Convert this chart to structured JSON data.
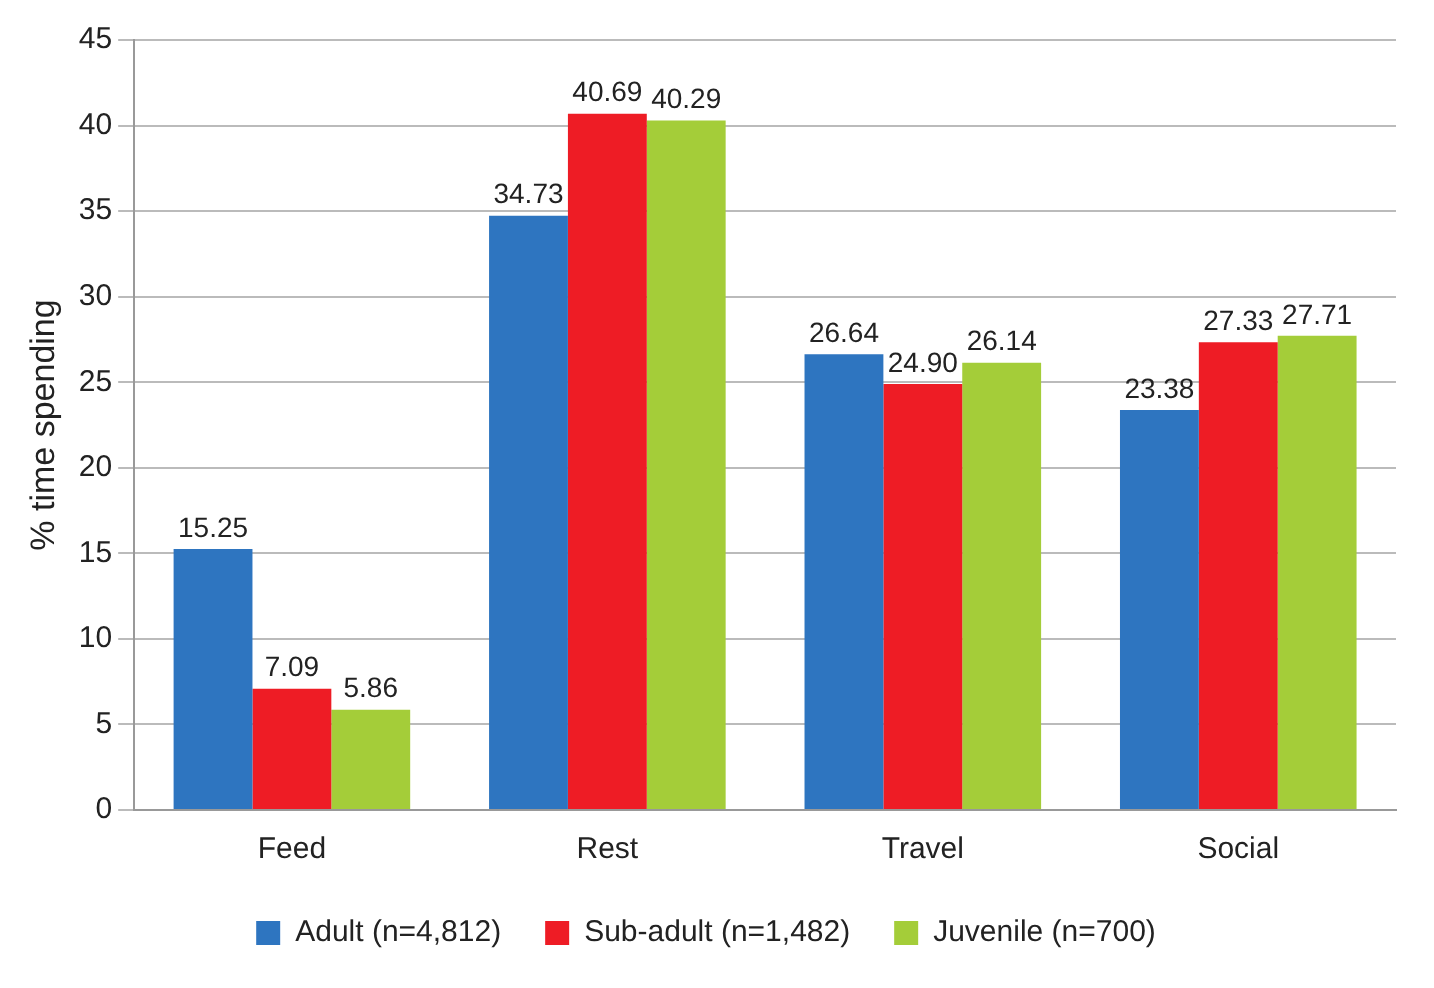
{
  "chart_data": {
    "type": "bar",
    "ylabel": "% time spending",
    "categories": [
      "Feed",
      "Rest",
      "Travel",
      "Social"
    ],
    "series": [
      {
        "name": "Adult (n=4,812)",
        "color": "#2e75c0",
        "values": [
          15.25,
          34.73,
          26.64,
          23.38
        ]
      },
      {
        "name": "Sub-adult (n=1,482)",
        "color": "#ee1c25",
        "values": [
          7.09,
          40.69,
          24.9,
          27.33
        ]
      },
      {
        "name": "Juvenile (n=700)",
        "color": "#a4cd39",
        "values": [
          5.86,
          40.29,
          26.14,
          27.71
        ]
      }
    ],
    "value_labels": [
      [
        "15.25",
        "34.73",
        "26.64",
        "23.38"
      ],
      [
        "7.09",
        "40.69",
        "24.90",
        "27.33"
      ],
      [
        "5.86",
        "40.29",
        "26.14",
        "27.71"
      ]
    ],
    "ylim": [
      0,
      45
    ],
    "yticks": [
      0,
      5,
      10,
      15,
      20,
      25,
      30,
      35,
      40,
      45
    ],
    "grid": "y",
    "legend": "bottom"
  }
}
